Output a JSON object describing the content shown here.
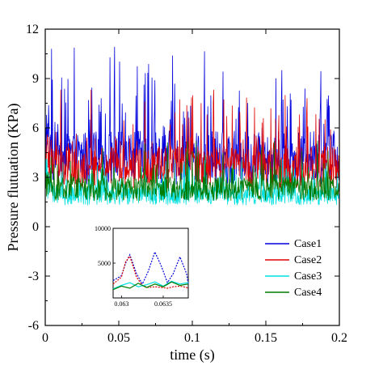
{
  "chart_data": {
    "type": "line",
    "title": "",
    "xlabel": "time (s)",
    "ylabel": "Pressure flutuation (KPa)",
    "xlim": [
      0,
      0.2
    ],
    "ylim": [
      -6,
      12
    ],
    "x_ticks": [
      0,
      0.05,
      0.1,
      0.15,
      0.2
    ],
    "x_tick_labels": [
      "0",
      "0.05",
      "0.1",
      "0.15",
      "0.2"
    ],
    "y_ticks": [
      -6,
      -3,
      0,
      3,
      6,
      9,
      12
    ],
    "y_tick_labels": [
      "-6",
      "-3",
      "0",
      "3",
      "6",
      "9",
      "12"
    ],
    "grid": false,
    "legend_position": "lower-right",
    "series": [
      {
        "name": "Case1",
        "color": "#0000dd",
        "baseline": 4.2,
        "amplitude": 3.6,
        "max": 11.1,
        "min": 1.4
      },
      {
        "name": "Case2",
        "color": "#dd0000",
        "baseline": 3.6,
        "amplitude": 2.8,
        "max": 8.3,
        "min": 0.9
      },
      {
        "name": "Case3",
        "color": "#00e0e0",
        "baseline": 1.9,
        "amplitude": 1.3,
        "max": 4.1,
        "min": 0.2
      },
      {
        "name": "Case4",
        "color": "#007a00",
        "baseline": 2.3,
        "amplitude": 1.6,
        "max": 9.9,
        "min": 0.5
      }
    ],
    "inset": {
      "xlim": [
        0.0629,
        0.0638
      ],
      "ylim": [
        0,
        10000
      ],
      "x_ticks": [
        0.063,
        0.0635
      ],
      "x_tick_labels": [
        "0.063",
        "0.0635"
      ],
      "y_ticks": [
        5000,
        10000
      ],
      "y_tick_labels": [
        "5000",
        "10000"
      ],
      "series": [
        {
          "name": "Case1",
          "color": "#0000dd",
          "x": [
            0.0629,
            0.063,
            0.06305,
            0.0631,
            0.06318,
            0.06325,
            0.06332,
            0.0634,
            0.06348,
            0.06355,
            0.06362,
            0.0637,
            0.06378,
            0.0638
          ],
          "y": [
            2500,
            3200,
            5000,
            6200,
            3500,
            2000,
            3800,
            6600,
            4500,
            2200,
            3500,
            5900,
            3500,
            2000
          ]
        },
        {
          "name": "Case2",
          "color": "#dd0000",
          "x": [
            0.0629,
            0.063,
            0.06305,
            0.0631,
            0.06318,
            0.06325,
            0.06332,
            0.0634,
            0.06348,
            0.06355,
            0.06362,
            0.0637,
            0.06378,
            0.0638
          ],
          "y": [
            2000,
            3000,
            5200,
            6000,
            3000,
            1800,
            1500,
            1600,
            1500,
            1400,
            1600,
            1700,
            1500,
            1400
          ]
        },
        {
          "name": "Case3",
          "color": "#00e0e0",
          "x": [
            0.0629,
            0.063,
            0.0631,
            0.0632,
            0.0633,
            0.0634,
            0.0635,
            0.0636,
            0.0637,
            0.0638
          ],
          "y": [
            1300,
            1800,
            2200,
            1600,
            1900,
            2300,
            1700,
            2400,
            2000,
            2200
          ]
        },
        {
          "name": "Case4",
          "color": "#007a00",
          "x": [
            0.0629,
            0.063,
            0.0631,
            0.0632,
            0.0633,
            0.0634,
            0.0635,
            0.0636,
            0.0637,
            0.0638
          ],
          "y": [
            1200,
            1700,
            1400,
            2100,
            1500,
            2000,
            1600,
            2300,
            1800,
            2000
          ]
        }
      ]
    }
  }
}
